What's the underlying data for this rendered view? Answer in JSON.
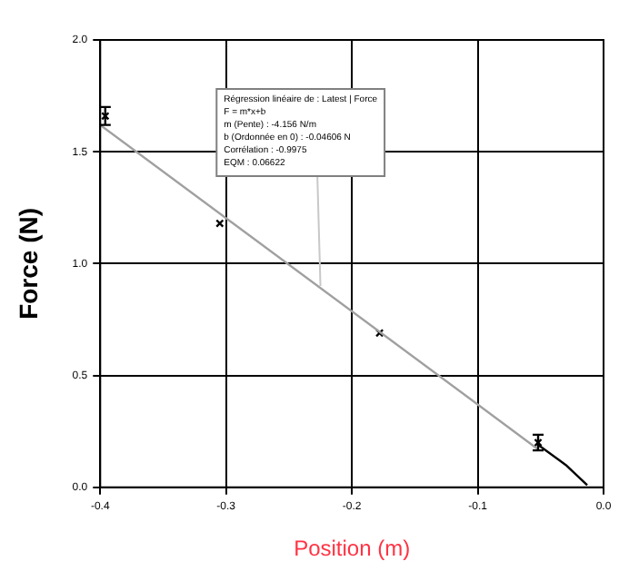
{
  "chart_data": {
    "type": "scatter",
    "xlabel": "Position (m)",
    "ylabel": "Force (N)",
    "xlim": [
      -0.4,
      0.0
    ],
    "ylim": [
      0.0,
      2.0
    ],
    "xticks": [
      {
        "value": -0.4,
        "label": "-0.4"
      },
      {
        "value": -0.3,
        "label": "-0.3"
      },
      {
        "value": -0.2,
        "label": "-0.2"
      },
      {
        "value": -0.1,
        "label": "-0.1"
      },
      {
        "value": 0,
        "label": "0.0"
      }
    ],
    "yticks": [
      {
        "value": 0,
        "label": "0.0"
      },
      {
        "value": 0.5,
        "label": "0.5"
      },
      {
        "value": 1,
        "label": "1.0"
      },
      {
        "value": 1.5,
        "label": "1.5"
      },
      {
        "value": 2,
        "label": "2.0"
      }
    ],
    "grid": true,
    "marker": "cross",
    "series": [
      {
        "type": "line",
        "color": "#a0a0a0",
        "x": [
          -0.4,
          -0.052
        ],
        "values": [
          1.62,
          0.17
        ],
        "marker": "none"
      },
      {
        "color": "#000000",
        "x": [
          -0.396,
          -0.305,
          -0.178,
          -0.052
        ],
        "values": [
          1.66,
          1.18,
          0.69,
          0.2
        ],
        "errors": [
          0.04,
          null,
          null,
          0.035
        ]
      },
      {
        "type": "line",
        "color": "#000000",
        "x": [
          -0.052,
          -0.03,
          -0.013
        ],
        "values": [
          0.19,
          0.1,
          0.01
        ],
        "marker": "none"
      }
    ],
    "annotations": [
      {
        "text": "Régression linéaire de : Latest | Force\nF = m*x+b\nm (Pente) : -4.156 N/m\nb (Ordonnée en 0) : -0.04606 N\nCorrélation : -0.9975\nEQM : 0.06622",
        "x": -0.225,
        "y": 0.9
      }
    ]
  }
}
